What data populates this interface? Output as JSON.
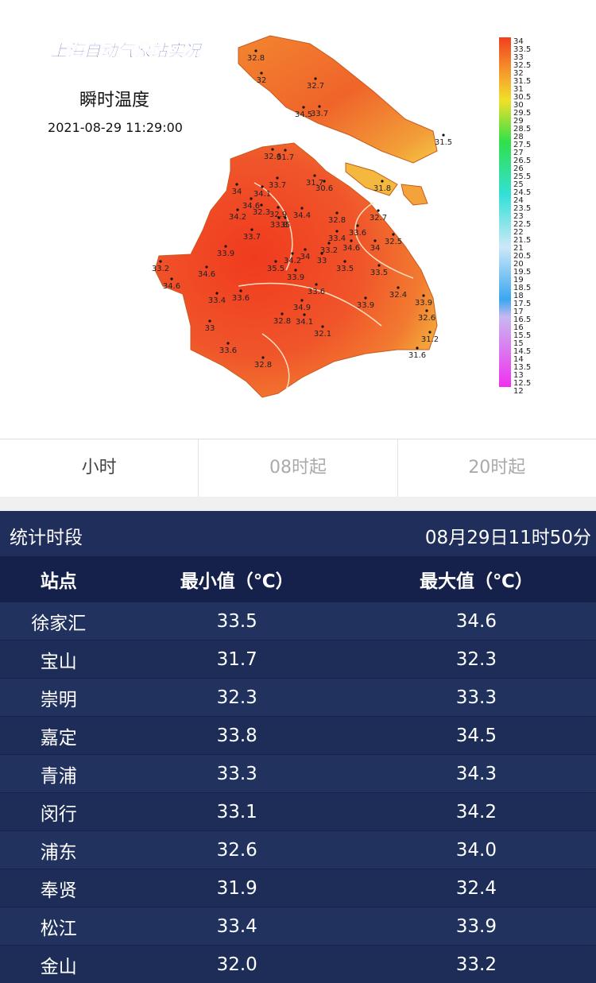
{
  "map": {
    "title": "上海自动气象站实况",
    "subtitle": "瞬时温度",
    "time": "2021-08-29 11:29:00",
    "readings": [
      32.8,
      32,
      32.7,
      34.5,
      33.7,
      31.5,
      31.8,
      32.6,
      31.7,
      31.7,
      30.6,
      33.7,
      34,
      34.1,
      34.6,
      32.3,
      32.9,
      34.4,
      33.8,
      35,
      34.2,
      32.8,
      32.7,
      33.7,
      33.6,
      33.4,
      32.5,
      34.6,
      34,
      33.2,
      33.9,
      34,
      34.2,
      33,
      33.5,
      35.5,
      33.2,
      34.6,
      33.5,
      33.9,
      34.6,
      33.6,
      32.4,
      33.4,
      33.6,
      33.9,
      33.9,
      34.9,
      32.6,
      32.8,
      34.1,
      33,
      32.1,
      31.2,
      33.6,
      31.6,
      32.8
    ],
    "colorbar": [
      34,
      33.5,
      33,
      32.5,
      32,
      31.5,
      31,
      30.5,
      30,
      29.5,
      29,
      28.5,
      28,
      27.5,
      27,
      26.5,
      26,
      25.5,
      25,
      24.5,
      24,
      23.5,
      23,
      22.5,
      22,
      21.5,
      21,
      20.5,
      20,
      19.5,
      19,
      18.5,
      18,
      17.5,
      17,
      16.5,
      16,
      15.5,
      15,
      14.5,
      14,
      13.5,
      13,
      12.5,
      12
    ]
  },
  "tabs": [
    "小时",
    "08时起",
    "20时起"
  ],
  "stats": {
    "label": "统计时段",
    "time": "08月29日11时50分",
    "columns": [
      "站点",
      "最小值（℃）",
      "最大值（℃）"
    ],
    "rows": [
      [
        "徐家汇",
        "33.5",
        "34.6"
      ],
      [
        "宝山",
        "31.7",
        "32.3"
      ],
      [
        "崇明",
        "32.3",
        "33.3"
      ],
      [
        "嘉定",
        "33.8",
        "34.5"
      ],
      [
        "青浦",
        "33.3",
        "34.3"
      ],
      [
        "闵行",
        "33.1",
        "34.2"
      ],
      [
        "浦东",
        "32.6",
        "34.0"
      ],
      [
        "奉贤",
        "31.9",
        "32.4"
      ],
      [
        "松江",
        "33.4",
        "33.9"
      ],
      [
        "金山",
        "32.0",
        "33.2"
      ]
    ]
  }
}
